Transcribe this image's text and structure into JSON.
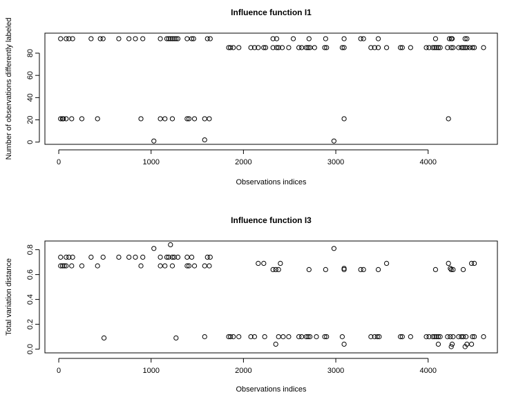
{
  "chart_data": [
    {
      "type": "scatter",
      "title": "Influence function I1",
      "xlabel": "Observations indices",
      "ylabel": "Number of observations differently labeled",
      "xlim": [
        -150,
        4750
      ],
      "ylim": [
        -2,
        98
      ],
      "xticks": [
        "0",
        "1000",
        "2000",
        "3000",
        "4000"
      ],
      "yticks": [
        "0",
        "20",
        "40",
        "60",
        "80"
      ],
      "grid": false,
      "points": [
        [
          20,
          93
        ],
        [
          80,
          93
        ],
        [
          110,
          93
        ],
        [
          150,
          93
        ],
        [
          350,
          93
        ],
        [
          450,
          93
        ],
        [
          480,
          93
        ],
        [
          650,
          93
        ],
        [
          760,
          93
        ],
        [
          830,
          93
        ],
        [
          910,
          93
        ],
        [
          1100,
          93
        ],
        [
          1170,
          93
        ],
        [
          1190,
          93
        ],
        [
          1210,
          93
        ],
        [
          1230,
          93
        ],
        [
          1250,
          93
        ],
        [
          1270,
          93
        ],
        [
          1290,
          93
        ],
        [
          1390,
          93
        ],
        [
          1440,
          93
        ],
        [
          1460,
          93
        ],
        [
          1610,
          93
        ],
        [
          1640,
          93
        ],
        [
          2320,
          93
        ],
        [
          2360,
          93
        ],
        [
          2540,
          93
        ],
        [
          2710,
          93
        ],
        [
          2890,
          93
        ],
        [
          3090,
          93
        ],
        [
          3270,
          93
        ],
        [
          3300,
          93
        ],
        [
          3460,
          93
        ],
        [
          4080,
          93
        ],
        [
          4230,
          93
        ],
        [
          4250,
          93
        ],
        [
          4260,
          93
        ],
        [
          4400,
          93
        ],
        [
          4420,
          93
        ],
        [
          20,
          21
        ],
        [
          40,
          21
        ],
        [
          50,
          21
        ],
        [
          80,
          21
        ],
        [
          140,
          21
        ],
        [
          250,
          21
        ],
        [
          420,
          21
        ],
        [
          890,
          21
        ],
        [
          1100,
          21
        ],
        [
          1150,
          21
        ],
        [
          1230,
          21
        ],
        [
          1390,
          21
        ],
        [
          1410,
          21
        ],
        [
          1470,
          21
        ],
        [
          1580,
          21
        ],
        [
          1630,
          21
        ],
        [
          3090,
          21
        ],
        [
          4220,
          21
        ],
        [
          1030,
          1
        ],
        [
          1580,
          2
        ],
        [
          2980,
          1
        ],
        [
          1840,
          85
        ],
        [
          1860,
          85
        ],
        [
          1890,
          85
        ],
        [
          1950,
          85
        ],
        [
          2080,
          85
        ],
        [
          2120,
          85
        ],
        [
          2160,
          85
        ],
        [
          2220,
          85
        ],
        [
          2240,
          85
        ],
        [
          2320,
          85
        ],
        [
          2360,
          85
        ],
        [
          2380,
          85
        ],
        [
          2420,
          85
        ],
        [
          2490,
          85
        ],
        [
          2600,
          85
        ],
        [
          2630,
          85
        ],
        [
          2680,
          85
        ],
        [
          2700,
          85
        ],
        [
          2720,
          85
        ],
        [
          2770,
          85
        ],
        [
          2880,
          85
        ],
        [
          2900,
          85
        ],
        [
          3070,
          85
        ],
        [
          3090,
          85
        ],
        [
          3380,
          85
        ],
        [
          3420,
          85
        ],
        [
          3460,
          85
        ],
        [
          3550,
          85
        ],
        [
          3700,
          85
        ],
        [
          3720,
          85
        ],
        [
          3810,
          85
        ],
        [
          3980,
          85
        ],
        [
          4010,
          85
        ],
        [
          4050,
          85
        ],
        [
          4070,
          85
        ],
        [
          4090,
          85
        ],
        [
          4110,
          85
        ],
        [
          4130,
          85
        ],
        [
          4210,
          85
        ],
        [
          4250,
          85
        ],
        [
          4270,
          85
        ],
        [
          4330,
          85
        ],
        [
          4360,
          85
        ],
        [
          4380,
          85
        ],
        [
          4400,
          85
        ],
        [
          4420,
          85
        ],
        [
          4450,
          85
        ],
        [
          4480,
          85
        ],
        [
          4500,
          85
        ],
        [
          4600,
          85
        ]
      ]
    },
    {
      "type": "scatter",
      "title": "Influence function I3",
      "xlabel": "Observations indices",
      "ylabel": "Total variation distance",
      "xlim": [
        -150,
        4750
      ],
      "ylim": [
        -0.03,
        0.87
      ],
      "xticks": [
        "0",
        "1000",
        "2000",
        "3000",
        "4000"
      ],
      "yticks": [
        "0.0",
        "0.2",
        "0.4",
        "0.6",
        "0.8"
      ],
      "grid": false,
      "points": [
        [
          20,
          0.74
        ],
        [
          80,
          0.74
        ],
        [
          110,
          0.74
        ],
        [
          150,
          0.74
        ],
        [
          350,
          0.74
        ],
        [
          480,
          0.74
        ],
        [
          650,
          0.74
        ],
        [
          760,
          0.74
        ],
        [
          830,
          0.74
        ],
        [
          910,
          0.74
        ],
        [
          1100,
          0.74
        ],
        [
          1170,
          0.74
        ],
        [
          1190,
          0.74
        ],
        [
          1230,
          0.74
        ],
        [
          1250,
          0.74
        ],
        [
          1290,
          0.74
        ],
        [
          1390,
          0.74
        ],
        [
          1440,
          0.74
        ],
        [
          1610,
          0.74
        ],
        [
          1640,
          0.74
        ],
        [
          20,
          0.67
        ],
        [
          40,
          0.67
        ],
        [
          60,
          0.67
        ],
        [
          80,
          0.67
        ],
        [
          140,
          0.67
        ],
        [
          250,
          0.67
        ],
        [
          420,
          0.67
        ],
        [
          890,
          0.67
        ],
        [
          1100,
          0.67
        ],
        [
          1150,
          0.67
        ],
        [
          1230,
          0.67
        ],
        [
          1390,
          0.67
        ],
        [
          1410,
          0.67
        ],
        [
          1470,
          0.67
        ],
        [
          1580,
          0.67
        ],
        [
          1630,
          0.67
        ],
        [
          1030,
          0.81
        ],
        [
          1210,
          0.84
        ],
        [
          2980,
          0.81
        ],
        [
          2160,
          0.69
        ],
        [
          2220,
          0.69
        ],
        [
          2320,
          0.64
        ],
        [
          2350,
          0.64
        ],
        [
          2380,
          0.64
        ],
        [
          2400,
          0.69
        ],
        [
          2710,
          0.64
        ],
        [
          2890,
          0.64
        ],
        [
          3090,
          0.65
        ],
        [
          3090,
          0.64
        ],
        [
          3270,
          0.64
        ],
        [
          3300,
          0.64
        ],
        [
          3460,
          0.64
        ],
        [
          3550,
          0.69
        ],
        [
          4080,
          0.64
        ],
        [
          4220,
          0.69
        ],
        [
          4240,
          0.65
        ],
        [
          4250,
          0.64
        ],
        [
          4270,
          0.64
        ],
        [
          4380,
          0.64
        ],
        [
          4470,
          0.69
        ],
        [
          4500,
          0.69
        ],
        [
          490,
          0.09
        ],
        [
          1270,
          0.09
        ],
        [
          1580,
          0.1
        ],
        [
          2350,
          0.04
        ],
        [
          3090,
          0.04
        ],
        [
          4110,
          0.04
        ],
        [
          4250,
          0.02
        ],
        [
          4260,
          0.04
        ],
        [
          4400,
          0.02
        ],
        [
          4420,
          0.04
        ],
        [
          4470,
          0.04
        ],
        [
          1840,
          0.1
        ],
        [
          1860,
          0.1
        ],
        [
          1890,
          0.1
        ],
        [
          1950,
          0.1
        ],
        [
          2080,
          0.1
        ],
        [
          2120,
          0.1
        ],
        [
          2230,
          0.1
        ],
        [
          2380,
          0.1
        ],
        [
          2430,
          0.1
        ],
        [
          2490,
          0.1
        ],
        [
          2600,
          0.1
        ],
        [
          2630,
          0.1
        ],
        [
          2680,
          0.1
        ],
        [
          2700,
          0.1
        ],
        [
          2720,
          0.1
        ],
        [
          2790,
          0.1
        ],
        [
          2880,
          0.1
        ],
        [
          2900,
          0.1
        ],
        [
          3070,
          0.1
        ],
        [
          3380,
          0.1
        ],
        [
          3420,
          0.1
        ],
        [
          3450,
          0.1
        ],
        [
          3470,
          0.1
        ],
        [
          3700,
          0.1
        ],
        [
          3720,
          0.1
        ],
        [
          3810,
          0.1
        ],
        [
          3980,
          0.1
        ],
        [
          4010,
          0.1
        ],
        [
          4050,
          0.1
        ],
        [
          4070,
          0.1
        ],
        [
          4090,
          0.1
        ],
        [
          4110,
          0.1
        ],
        [
          4130,
          0.1
        ],
        [
          4210,
          0.1
        ],
        [
          4240,
          0.1
        ],
        [
          4270,
          0.1
        ],
        [
          4330,
          0.1
        ],
        [
          4360,
          0.1
        ],
        [
          4380,
          0.1
        ],
        [
          4410,
          0.1
        ],
        [
          4480,
          0.1
        ],
        [
          4500,
          0.1
        ],
        [
          4600,
          0.1
        ]
      ]
    }
  ]
}
